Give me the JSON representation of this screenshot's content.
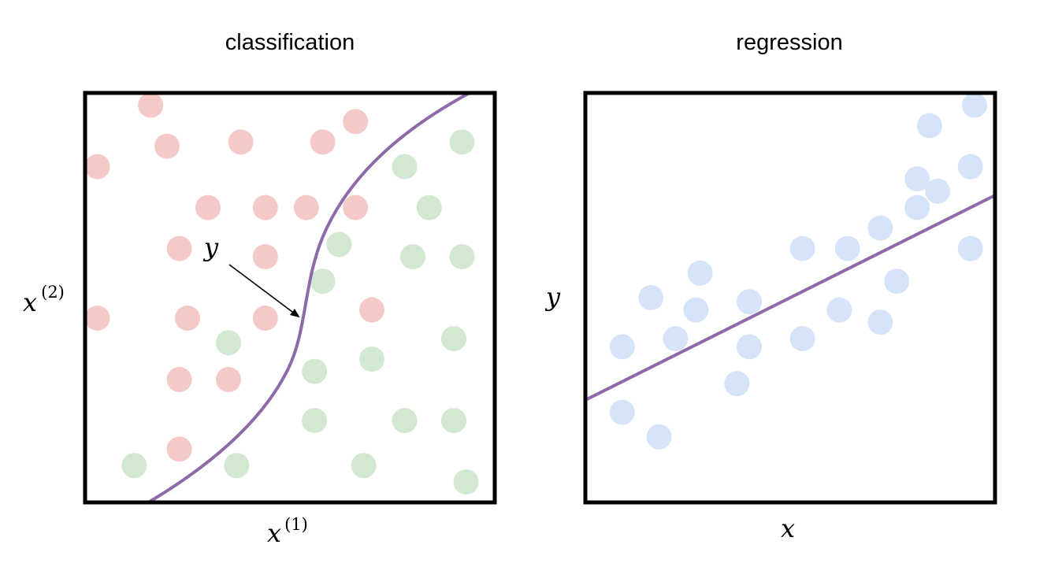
{
  "colors": {
    "class_a": "#f6c9c9",
    "class_b": "#d3e8d1",
    "regression_point": "#d6e4f9",
    "curve": "#8e6ba8",
    "frame": "#000000"
  },
  "classification": {
    "title": "classification",
    "xlabel": "x",
    "xlabel_sup": "(1)",
    "ylabel": "x",
    "ylabel_sup": "(2)",
    "annotation": "y",
    "points_a": [
      [
        1.6,
        9.7
      ],
      [
        0.3,
        8.2
      ],
      [
        2.0,
        8.7
      ],
      [
        3.8,
        8.8
      ],
      [
        5.8,
        8.8
      ],
      [
        6.6,
        9.3
      ],
      [
        3.0,
        7.2
      ],
      [
        4.4,
        7.2
      ],
      [
        5.4,
        7.2
      ],
      [
        6.6,
        7.2
      ],
      [
        2.3,
        6.2
      ],
      [
        4.4,
        6.0
      ],
      [
        0.3,
        4.5
      ],
      [
        2.5,
        4.5
      ],
      [
        4.4,
        4.5
      ],
      [
        7.0,
        4.7
      ],
      [
        2.3,
        3.0
      ],
      [
        3.5,
        3.0
      ],
      [
        2.3,
        1.3
      ]
    ],
    "points_b": [
      [
        9.2,
        8.8
      ],
      [
        7.8,
        8.2
      ],
      [
        8.4,
        7.2
      ],
      [
        6.2,
        6.3
      ],
      [
        8.0,
        6.0
      ],
      [
        9.2,
        6.0
      ],
      [
        5.8,
        5.4
      ],
      [
        3.5,
        3.9
      ],
      [
        9.0,
        4.0
      ],
      [
        5.6,
        3.2
      ],
      [
        7.0,
        3.5
      ],
      [
        5.6,
        2.0
      ],
      [
        7.8,
        2.0
      ],
      [
        9.0,
        2.0
      ],
      [
        1.2,
        0.9
      ],
      [
        3.7,
        0.9
      ],
      [
        6.8,
        0.9
      ],
      [
        9.3,
        0.5
      ]
    ]
  },
  "regression": {
    "title": "regression",
    "xlabel": "x",
    "ylabel": "y",
    "points": [
      [
        0.9,
        3.8
      ],
      [
        0.9,
        2.2
      ],
      [
        1.6,
        5.0
      ],
      [
        2.2,
        4.0
      ],
      [
        2.8,
        5.6
      ],
      [
        2.7,
        4.7
      ],
      [
        1.8,
        1.6
      ],
      [
        4.0,
        4.9
      ],
      [
        4.0,
        3.8
      ],
      [
        3.7,
        2.9
      ],
      [
        5.3,
        6.2
      ],
      [
        5.3,
        4.0
      ],
      [
        6.4,
        6.2
      ],
      [
        6.2,
        4.7
      ],
      [
        7.2,
        6.7
      ],
      [
        7.2,
        4.4
      ],
      [
        7.6,
        5.4
      ],
      [
        8.1,
        7.2
      ],
      [
        8.1,
        7.9
      ],
      [
        8.6,
        7.6
      ],
      [
        8.4,
        9.2
      ],
      [
        9.4,
        8.2
      ],
      [
        9.4,
        6.2
      ],
      [
        9.5,
        9.7
      ]
    ],
    "fit_line": [
      [
        0.0,
        2.5
      ],
      [
        10.0,
        7.5
      ]
    ]
  }
}
